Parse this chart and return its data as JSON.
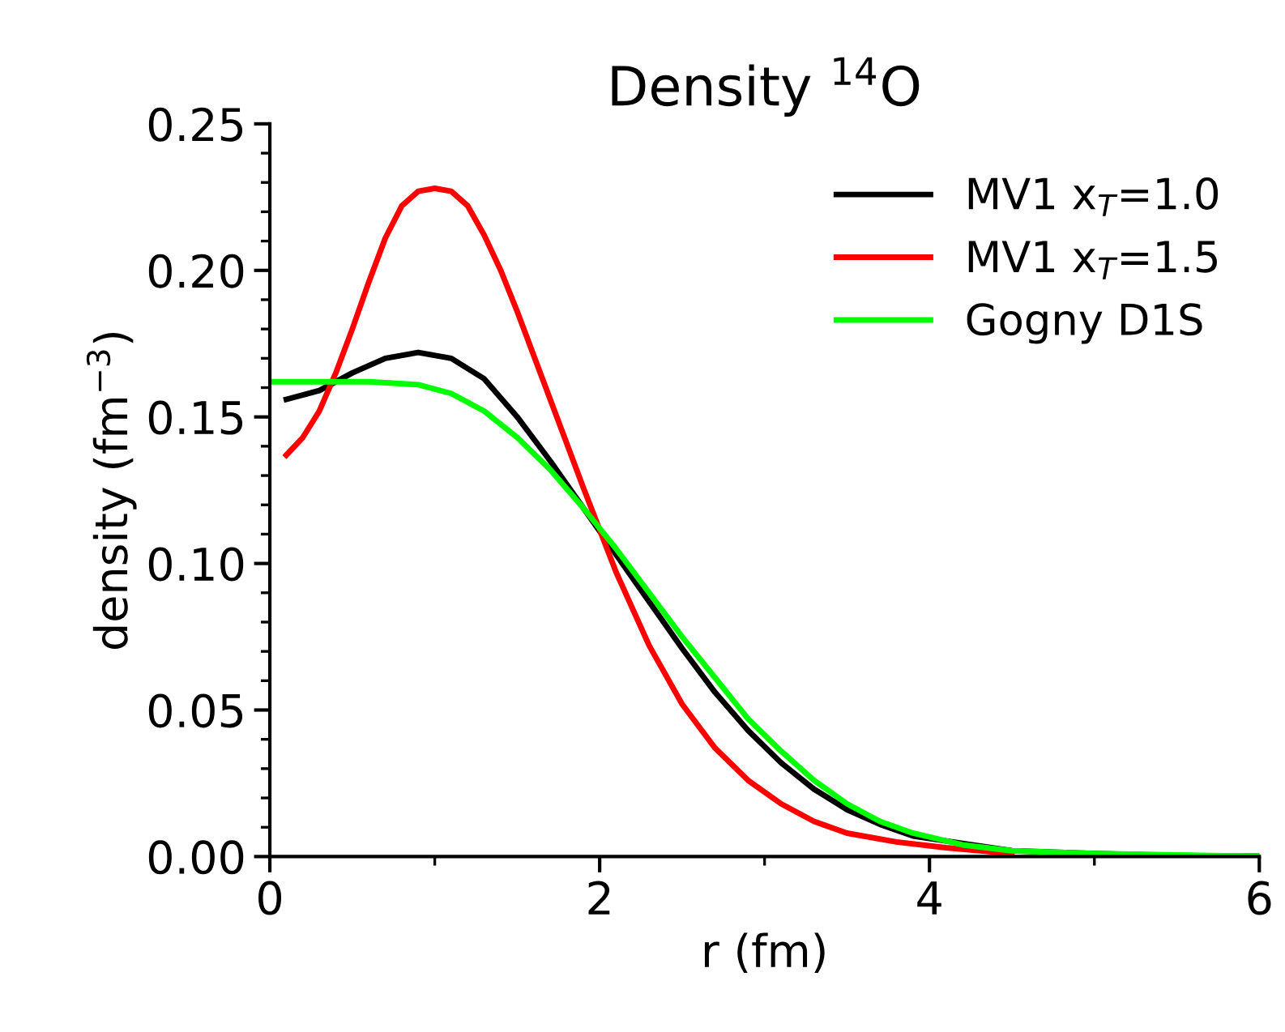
{
  "chart_data": {
    "type": "line",
    "title": "Density $^{14}$O",
    "xlabel": "r (fm)",
    "ylabel": "density (fm$^{−3}$)",
    "xlim": [
      0,
      6
    ],
    "ylim": [
      0,
      0.25
    ],
    "xticks": [
      0,
      {
        "value": 1,
        "label": null
      },
      2,
      {
        "value": 3,
        "label": null
      },
      4,
      {
        "value": 5,
        "label": null
      },
      6
    ],
    "yticks": [
      {
        "value": 0,
        "label": "0.00"
      },
      {
        "value": 0.01,
        "label": null
      },
      {
        "value": 0.02,
        "label": null
      },
      {
        "value": 0.03,
        "label": null
      },
      {
        "value": 0.04,
        "label": null
      },
      {
        "value": 0.05,
        "label": "0.05"
      },
      {
        "value": 0.06,
        "label": null
      },
      {
        "value": 0.07,
        "label": null
      },
      {
        "value": 0.08,
        "label": null
      },
      {
        "value": 0.09,
        "label": null
      },
      {
        "value": 0.1,
        "label": "0.10"
      },
      {
        "value": 0.11,
        "label": null
      },
      {
        "value": 0.12,
        "label": null
      },
      {
        "value": 0.13,
        "label": null
      },
      {
        "value": 0.14,
        "label": null
      },
      {
        "value": 0.15,
        "label": "0.15"
      },
      {
        "value": 0.16,
        "label": null
      },
      {
        "value": 0.17,
        "label": null
      },
      {
        "value": 0.18,
        "label": null
      },
      {
        "value": 0.19,
        "label": null
      },
      {
        "value": 0.2,
        "label": "0.20"
      },
      {
        "value": 0.21,
        "label": null
      },
      {
        "value": 0.22,
        "label": null
      },
      {
        "value": 0.23,
        "label": null
      },
      {
        "value": 0.24,
        "label": null
      },
      {
        "value": 0.25,
        "label": "0.25"
      }
    ],
    "grid": false,
    "legend": "top right",
    "marker": "none",
    "line_style": "solid",
    "series": [
      {
        "name": "MV1 x$_{T}$=1.0",
        "color": "#000000",
        "x": [
          0.1,
          0.3,
          0.5,
          0.7,
          0.9,
          1.1,
          1.3,
          1.5,
          1.7,
          1.9,
          2.1,
          2.3,
          2.5,
          2.7,
          2.9,
          3.1,
          3.3,
          3.5,
          3.7,
          3.9,
          4.5,
          5,
          5.5,
          6
        ],
        "values": [
          0.156,
          0.159,
          0.165,
          0.17,
          0.172,
          0.17,
          0.163,
          0.15,
          0.135,
          0.119,
          0.103,
          0.087,
          0.071,
          0.056,
          0.043,
          0.032,
          0.023,
          0.016,
          0.011,
          0.007,
          0.002,
          0.001,
          0.0003,
          0.0001
        ]
      },
      {
        "name": "MV1 x$_{T}$=1.5",
        "color": "#ff0000",
        "x": [
          0.1,
          0.2,
          0.3,
          0.4,
          0.5,
          0.6,
          0.7,
          0.8,
          0.9,
          1.0,
          1.1,
          1.2,
          1.3,
          1.4,
          1.5,
          1.7,
          1.9,
          2.1,
          2.3,
          2.5,
          2.7,
          2.9,
          3.1,
          3.3,
          3.5,
          3.8,
          4.1,
          4.5
        ],
        "values": [
          0.137,
          0.143,
          0.152,
          0.165,
          0.18,
          0.196,
          0.211,
          0.222,
          0.227,
          0.228,
          0.227,
          0.222,
          0.212,
          0.2,
          0.186,
          0.156,
          0.126,
          0.097,
          0.072,
          0.052,
          0.037,
          0.026,
          0.018,
          0.012,
          0.008,
          0.005,
          0.003,
          0.001
        ]
      },
      {
        "name": "Gogny D1S",
        "color": "#00ff00",
        "x": [
          0,
          0.3,
          0.6,
          0.9,
          1.1,
          1.3,
          1.5,
          1.7,
          1.9,
          2.1,
          2.3,
          2.5,
          2.7,
          2.9,
          3.1,
          3.3,
          3.5,
          3.7,
          3.9,
          4.2,
          4.5,
          5,
          6
        ],
        "values": [
          0.162,
          0.162,
          0.162,
          0.161,
          0.158,
          0.152,
          0.143,
          0.132,
          0.119,
          0.105,
          0.09,
          0.075,
          0.061,
          0.047,
          0.036,
          0.026,
          0.018,
          0.012,
          0.008,
          0.004,
          0.002,
          0.001,
          0.0001
        ]
      }
    ]
  }
}
